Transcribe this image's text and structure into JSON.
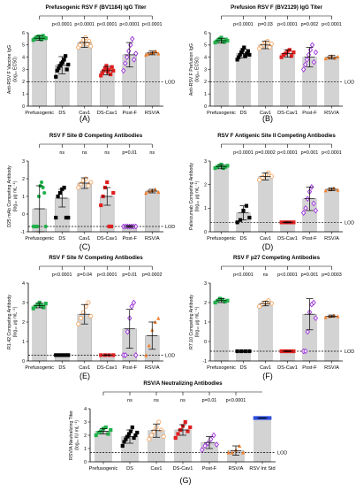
{
  "chart_data": [
    {
      "id": "A",
      "panel_label": "(A)",
      "type": "scatter",
      "title": "Prefusogenic RSV F (BV1184) IgG Titer",
      "ylabel_lines": [
        "Anti-RSV F Vaccine IgG",
        "(log₁₀ EC50)"
      ],
      "ylim": [
        0,
        6
      ],
      "yticks": [
        0,
        1,
        2,
        3,
        4,
        5,
        6
      ],
      "lod_value": 2.0,
      "lod_label": "LOD",
      "categories": [
        "Prefusogenic",
        "DS",
        "Cav1",
        "DS-Cav1",
        "Post-F",
        "RSV/A"
      ],
      "significance": [
        "",
        "p<0.0001",
        "p<0.0001",
        "p<0.0001",
        "p<0.0001",
        "p<0.0001"
      ],
      "series": [
        {
          "color": "#22b14c",
          "shape": "square",
          "mean": 5.55,
          "sd": 0.18,
          "points": [
            5.4,
            5.5,
            5.6,
            5.65,
            5.7,
            5.5,
            5.45,
            5.75,
            5.6,
            5.55
          ]
        },
        {
          "color": "#000000",
          "shape": "square",
          "mean": 3.35,
          "sd": 0.7,
          "points": [
            2.4,
            2.9,
            3.1,
            3.3,
            3.5,
            3.6,
            3.8,
            4.1,
            3.0,
            3.4
          ]
        },
        {
          "color": "#f4a460",
          "shape": "circle-open",
          "mean": 5.2,
          "sd": 0.4,
          "points": [
            4.8,
            5.0,
            5.2,
            5.4,
            5.6,
            5.1,
            5.3,
            4.9
          ]
        },
        {
          "color": "#e02020",
          "shape": "square",
          "mean": 2.9,
          "sd": 0.35,
          "points": [
            2.5,
            2.7,
            2.9,
            3.1,
            3.3,
            2.8,
            3.0,
            2.6,
            3.2,
            2.9
          ]
        },
        {
          "color": "#9b30d9",
          "shape": "diamond-open",
          "mean": 4.2,
          "sd": 1.0,
          "points": [
            2.9,
            3.5,
            4.0,
            4.5,
            5.0,
            5.5,
            3.8,
            4.3
          ]
        },
        {
          "color": "#f08030",
          "shape": "triangle",
          "mean": 4.35,
          "sd": 0.15,
          "points": [
            4.2,
            4.3,
            4.35,
            4.4,
            4.5,
            4.3
          ]
        }
      ]
    },
    {
      "id": "B",
      "panel_label": "(B)",
      "type": "scatter",
      "title": "Prefusion RSV F (BV2129) IgG Titer",
      "ylabel_lines": [
        "Anti-RSV F Prefusion IgG",
        "(log₁₀ EC50)"
      ],
      "ylim": [
        0,
        6
      ],
      "yticks": [
        0,
        1,
        2,
        3,
        4,
        5,
        6
      ],
      "lod_value": 2.0,
      "lod_label": "LOD",
      "categories": [
        "Prefusogenic",
        "DS",
        "Cav1",
        "DS-Cav1",
        "Post-F",
        "RSV/A"
      ],
      "significance": [
        "",
        "p<0.0001",
        "p=0.03",
        "p<0.0001",
        "p=0.002",
        "p<0.0001"
      ],
      "series": [
        {
          "color": "#22b14c",
          "shape": "square",
          "mean": 5.35,
          "sd": 0.2,
          "points": [
            5.2,
            5.3,
            5.4,
            5.5,
            5.6,
            5.3,
            5.25,
            5.45,
            5.35
          ]
        },
        {
          "color": "#000000",
          "shape": "square",
          "mean": 4.3,
          "sd": 0.35,
          "points": [
            3.8,
            4.0,
            4.2,
            4.4,
            4.6,
            4.8,
            4.1,
            4.3,
            4.5,
            4.2
          ]
        },
        {
          "color": "#f4a460",
          "shape": "circle-open",
          "mean": 5.0,
          "sd": 0.3,
          "points": [
            4.7,
            4.9,
            5.0,
            5.2,
            5.3,
            4.8,
            5.1
          ]
        },
        {
          "color": "#e02020",
          "shape": "square",
          "mean": 4.3,
          "sd": 0.3,
          "points": [
            4.0,
            4.2,
            4.3,
            4.5,
            4.6,
            4.1,
            4.4
          ]
        },
        {
          "color": "#9b30d9",
          "shape": "diamond-open",
          "mean": 4.0,
          "sd": 0.8,
          "points": [
            3.0,
            3.4,
            3.8,
            4.2,
            4.6,
            5.0,
            3.6,
            4.4
          ]
        },
        {
          "color": "#f08030",
          "shape": "triangle",
          "mean": 4.0,
          "sd": 0.15,
          "points": [
            3.9,
            4.0,
            4.1,
            3.95,
            4.05
          ]
        }
      ]
    },
    {
      "id": "C",
      "panel_label": "(C)",
      "type": "scatter",
      "title": "RSV F Site Ø Competing Antibodies",
      "ylabel_lines": [
        "D25 mAb Competing Antibody",
        "(log₁₀ μg mL⁻¹)"
      ],
      "ylim": [
        -1,
        3
      ],
      "yticks": [
        -1,
        0,
        1,
        2,
        3
      ],
      "lod_value": -0.7,
      "lod_label": "LOD",
      "categories": [
        "Prefusogenic",
        "DS",
        "Cav1",
        "DS-Cav1",
        "Post-F",
        "RSV/A"
      ],
      "significance": [
        "",
        "ns",
        "ns",
        "ns",
        "p=0.01",
        "ns"
      ],
      "series": [
        {
          "color": "#22b14c",
          "shape": "circle",
          "mean": 0.3,
          "sd": 1.3,
          "points": [
            -0.7,
            -0.7,
            -0.7,
            -0.7,
            1.0,
            1.6,
            1.8,
            1.5,
            1.2,
            -0.7
          ]
        },
        {
          "color": "#000000",
          "shape": "square",
          "mean": 0.9,
          "sd": 0.5,
          "points": [
            -0.2,
            1.0,
            1.2,
            1.4,
            1.5,
            -0.2,
            -0.2
          ]
        },
        {
          "color": "#f4a460",
          "shape": "circle-open",
          "mean": 1.75,
          "sd": 0.3,
          "points": [
            1.5,
            1.7,
            1.9,
            2.0,
            1.6,
            1.8
          ]
        },
        {
          "color": "#e02020",
          "shape": "square",
          "mean": 1.0,
          "sd": 0.5,
          "points": [
            0.5,
            1.0,
            1.5,
            1.8,
            -0.7,
            -0.7,
            1.2
          ]
        },
        {
          "color": "#9b30d9",
          "shape": "diamond-open",
          "mean": -0.7,
          "sd": 0.05,
          "points": [
            -0.7,
            -0.7,
            -0.7,
            -0.7,
            -0.7,
            -0.7,
            -0.7
          ]
        },
        {
          "color": "#f08030",
          "shape": "triangle",
          "mean": 1.3,
          "sd": 0.1,
          "points": [
            1.2,
            1.3,
            1.35,
            1.4,
            1.25
          ]
        }
      ]
    },
    {
      "id": "D",
      "panel_label": "(D)",
      "type": "scatter",
      "title": "RSV F Antigenic Site II Competing Antibodies",
      "ylabel_lines": [
        "Palivizumab Competing Antibody",
        "(log₁₀ μg mL⁻¹)"
      ],
      "ylim": [
        0,
        3
      ],
      "yticks": [
        0,
        1,
        2,
        3
      ],
      "lod_value": 0.4,
      "lod_label": "LOD",
      "categories": [
        "Prefusogenic",
        "DS",
        "Cav1",
        "DS-Cav1",
        "Post-F",
        "RSV/A"
      ],
      "significance": [
        "",
        "p<0.0001",
        "p=0.0002",
        "p<0.0001",
        "p=0.001",
        "p<0.0001"
      ],
      "series": [
        {
          "color": "#22b14c",
          "shape": "square",
          "mean": 2.75,
          "sd": 0.08,
          "points": [
            2.7,
            2.75,
            2.8,
            2.85,
            2.7,
            2.75,
            2.8
          ]
        },
        {
          "color": "#000000",
          "shape": "square",
          "mean": 0.8,
          "sd": 0.3,
          "points": [
            0.4,
            0.5,
            0.9,
            1.1,
            0.6
          ]
        },
        {
          "color": "#f4a460",
          "shape": "circle-open",
          "mean": 2.35,
          "sd": 0.15,
          "points": [
            2.2,
            2.3,
            2.4,
            2.5,
            2.35
          ]
        },
        {
          "color": "#e02020",
          "shape": "square",
          "mean": 0.4,
          "sd": 0.02,
          "points": [
            0.4,
            0.4,
            0.4,
            0.4,
            0.4,
            0.4
          ]
        },
        {
          "color": "#9b30d9",
          "shape": "diamond-open",
          "mean": 1.4,
          "sd": 0.5,
          "points": [
            0.8,
            1.0,
            1.4,
            1.7,
            1.9,
            1.2,
            0.9
          ]
        },
        {
          "color": "#f08030",
          "shape": "triangle",
          "mean": 1.8,
          "sd": 0.06,
          "points": [
            1.75,
            1.8,
            1.85,
            1.78
          ]
        }
      ]
    },
    {
      "id": "E",
      "panel_label": "(E)",
      "type": "scatter",
      "title": "RSV F Site IV Competing Antibodies",
      "ylabel_lines": [
        "R1.42 Competing Antibody",
        "(log₁₀ μg mL⁻¹)"
      ],
      "ylim": [
        0,
        4
      ],
      "yticks": [
        0,
        1,
        2,
        3,
        4
      ],
      "lod_value": 0.3,
      "lod_label": "LOD",
      "categories": [
        "Prefusogenic",
        "DS",
        "Cav1",
        "DS-Cav1",
        "Post-F",
        "RSV/A"
      ],
      "significance": [
        "",
        "p<0.0001",
        "p=0.04",
        "p<0.0001",
        "p=0.01",
        "p=0.0002"
      ],
      "series": [
        {
          "color": "#22b14c",
          "shape": "square",
          "mean": 2.85,
          "sd": 0.12,
          "points": [
            2.7,
            2.8,
            2.9,
            3.0,
            2.85,
            2.75,
            2.95
          ]
        },
        {
          "color": "#000000",
          "shape": "square",
          "mean": 0.3,
          "sd": 0.02,
          "points": [
            0.3,
            0.3,
            0.3,
            0.3,
            0.3
          ]
        },
        {
          "color": "#f4a460",
          "shape": "circle-open",
          "mean": 2.4,
          "sd": 0.5,
          "points": [
            1.9,
            2.2,
            2.5,
            2.8,
            3.0,
            2.3
          ]
        },
        {
          "color": "#e02020",
          "shape": "square",
          "mean": 0.3,
          "sd": 0.02,
          "points": [
            0.3,
            0.3,
            0.3,
            0.3
          ]
        },
        {
          "color": "#9b30d9",
          "shape": "diamond-open",
          "mean": 1.65,
          "sd": 1.0,
          "points": [
            0.3,
            0.3,
            1.5,
            2.2,
            2.8,
            3.0,
            0.3
          ]
        },
        {
          "color": "#f08030",
          "shape": "triangle",
          "mean": 1.3,
          "sd": 0.7,
          "points": [
            0.3,
            0.8,
            1.6,
            2.0,
            2.2
          ]
        }
      ]
    },
    {
      "id": "F",
      "panel_label": "(F)",
      "type": "scatter",
      "title": "RSV F p27 Competing Antibodies",
      "ylabel_lines": [
        "R7.10 Competing Antibody",
        "(log₁₀ μg mL⁻¹)"
      ],
      "ylim": [
        -1,
        3
      ],
      "yticks": [
        -1,
        0,
        1,
        2,
        3
      ],
      "lod_value": -0.5,
      "lod_label": "LOD",
      "categories": [
        "Prefusogenic",
        "DS",
        "Cav1",
        "DS-Cav1",
        "Post-F",
        "RSV/A"
      ],
      "significance": [
        "",
        "p<0.0001",
        "ns",
        "p<0.0001",
        "p=0.001",
        "p=0.0003"
      ],
      "series": [
        {
          "color": "#22b14c",
          "shape": "square",
          "mean": 2.1,
          "sd": 0.1,
          "points": [
            2.0,
            2.1,
            2.2,
            2.15,
            2.05,
            2.1
          ]
        },
        {
          "color": "#000000",
          "shape": "square",
          "mean": -0.5,
          "sd": 0.02,
          "points": [
            -0.5,
            -0.5,
            -0.5,
            -0.5
          ]
        },
        {
          "color": "#f4a460",
          "shape": "circle-open",
          "mean": 1.95,
          "sd": 0.12,
          "points": [
            1.8,
            1.9,
            2.0,
            2.1,
            1.95
          ]
        },
        {
          "color": "#e02020",
          "shape": "square",
          "mean": -0.5,
          "sd": 0.02,
          "points": [
            -0.5,
            -0.5,
            -0.5,
            -0.5,
            -0.5,
            -0.5
          ]
        },
        {
          "color": "#9b30d9",
          "shape": "diamond-open",
          "mean": 1.4,
          "sd": 0.8,
          "points": [
            -0.5,
            -0.5,
            0.5,
            1.5,
            1.9,
            2.0,
            1.2
          ]
        },
        {
          "color": "#f08030",
          "shape": "triangle",
          "mean": 1.3,
          "sd": 0.06,
          "points": [
            1.25,
            1.3,
            1.35,
            1.3
          ]
        }
      ]
    },
    {
      "id": "G",
      "panel_label": "(G)",
      "type": "scatter",
      "title": "RSV/A Neutralizing Antibodies",
      "ylabel_lines": [
        "RSV/A Neutralizing Titer",
        "(log₁₀ IU mL⁻¹)"
      ],
      "ylim": [
        0,
        4
      ],
      "yticks": [
        0,
        1,
        2,
        3,
        4
      ],
      "lod_value": 0.7,
      "lod_label": "LOD",
      "categories": [
        "Prefusogenic",
        "DS",
        "Cav1",
        "DS-Cav1",
        "Post-F",
        "RSV/A",
        "RSV Int Std"
      ],
      "significance": [
        "",
        "ns",
        "ns",
        "ns",
        "p=0.01",
        "p<0.0001",
        ""
      ],
      "series": [
        {
          "color": "#22b14c",
          "shape": "square",
          "mean": 2.3,
          "sd": 0.2,
          "points": [
            2.0,
            2.2,
            2.3,
            2.5,
            2.6,
            2.1,
            2.4
          ]
        },
        {
          "color": "#000000",
          "shape": "square",
          "mean": 1.9,
          "sd": 0.5,
          "points": [
            1.2,
            1.5,
            1.7,
            1.9,
            2.1,
            2.3,
            2.6,
            1.8,
            2.0,
            2.2
          ]
        },
        {
          "color": "#f4a460",
          "shape": "circle-open",
          "mean": 2.35,
          "sd": 0.5,
          "points": [
            1.7,
            2.0,
            2.3,
            2.6,
            3.0,
            2.4,
            1.9
          ]
        },
        {
          "color": "#e02020",
          "shape": "square",
          "mean": 2.4,
          "sd": 0.4,
          "points": [
            1.8,
            2.1,
            2.4,
            2.7,
            3.0,
            2.3,
            2.6
          ]
        },
        {
          "color": "#9b30d9",
          "shape": "diamond-open",
          "mean": 1.45,
          "sd": 0.45,
          "points": [
            0.9,
            1.2,
            1.4,
            1.7,
            2.0,
            1.3
          ]
        },
        {
          "color": "#f08030",
          "shape": "triangle",
          "mean": 0.85,
          "sd": 0.35,
          "points": [
            0.7,
            0.7,
            0.9,
            1.2,
            0.7
          ]
        },
        {
          "color": "#3050e0",
          "shape": "square",
          "mean": 3.3,
          "sd": 0.02,
          "points": [
            3.3,
            3.3,
            3.3,
            3.3,
            3.3,
            3.3,
            3.3,
            3.3
          ]
        }
      ]
    }
  ]
}
